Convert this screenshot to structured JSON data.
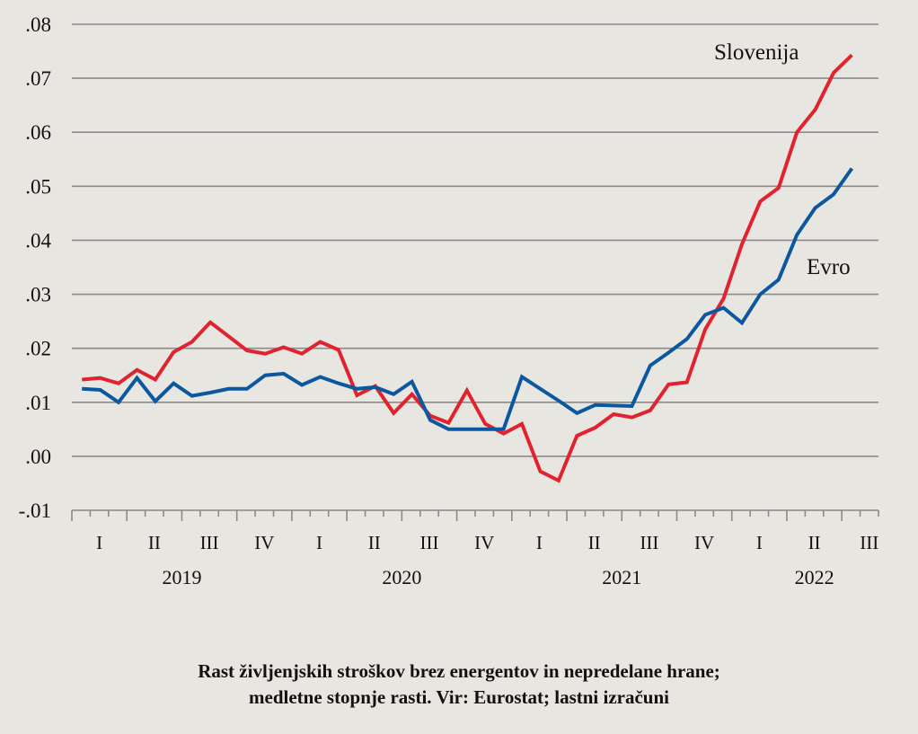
{
  "chart_data": {
    "type": "line",
    "title": "",
    "xlabel": "",
    "ylabel": "",
    "ylim": [
      -0.01,
      0.08
    ],
    "yticks": [
      0.08,
      0.07,
      0.06,
      0.05,
      0.04,
      0.03,
      0.02,
      0.01,
      0.0,
      -0.01
    ],
    "ytick_labels": [
      ".08",
      ".07",
      ".06",
      ".05",
      ".04",
      ".03",
      ".02",
      ".01",
      ".00",
      "-.01"
    ],
    "grid": true,
    "x_unit": "month",
    "x_start": "2019-01",
    "x_axis_months": 44,
    "quarter_labels": [
      "I",
      "II",
      "III",
      "IV",
      "I",
      "II",
      "III",
      "IV",
      "I",
      "II",
      "III",
      "IV",
      "I",
      "II",
      "III"
    ],
    "year_labels": [
      "2019",
      "2020",
      "2021",
      "2022"
    ],
    "series": [
      {
        "name": "Slovenija",
        "color": "#e0232e",
        "values": [
          0.0142,
          0.0145,
          0.0135,
          0.016,
          0.0142,
          0.0193,
          0.0212,
          0.0248,
          0.0222,
          0.0196,
          0.019,
          0.0202,
          0.019,
          0.0212,
          0.0197,
          0.0113,
          0.013,
          0.008,
          0.0115,
          0.0075,
          0.0062,
          0.0122,
          0.006,
          0.0042,
          0.006,
          -0.0028,
          -0.0045,
          0.0038,
          0.0053,
          0.0078,
          0.0072,
          0.0085,
          0.0133,
          0.0137,
          0.0235,
          0.0292,
          0.0393,
          0.0472,
          0.0497,
          0.06,
          0.0642,
          0.071,
          0.0743
        ]
      },
      {
        "name": "Evro",
        "color": "#0b57a0",
        "values": [
          0.0125,
          0.0123,
          0.01,
          0.0145,
          0.0102,
          0.0135,
          0.0112,
          0.0118,
          0.0125,
          0.0125,
          0.015,
          0.0153,
          0.0132,
          0.0147,
          0.0135,
          0.0125,
          0.0128,
          0.0115,
          0.0138,
          0.0067,
          0.005,
          0.005,
          0.005,
          0.005,
          0.0147,
          0.0125,
          0.0103,
          0.008,
          0.0095,
          0.0094,
          0.0093,
          0.0168,
          0.0192,
          0.0217,
          0.0262,
          0.0275,
          0.0247,
          0.03,
          0.0327,
          0.041,
          0.046,
          0.0485,
          0.0533
        ]
      }
    ],
    "annotations": [
      "Slovenija",
      "Evro"
    ]
  },
  "caption": {
    "line1": "Rast življenjskih stroškov brez energentov in nepredelane hrane;",
    "line2": "medletne stopnje rasti. Vir: Eurostat; lastni izračuni"
  }
}
